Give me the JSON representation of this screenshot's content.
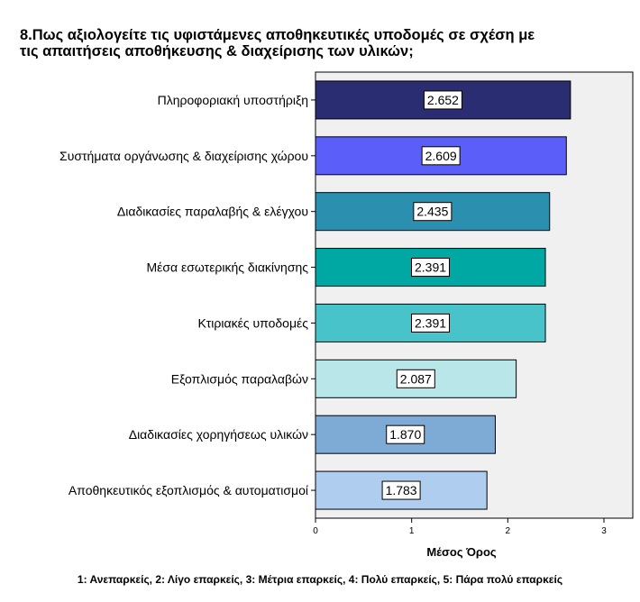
{
  "chart_data": {
    "type": "bar",
    "orientation": "horizontal",
    "title_lines": [
      "8.Πως αξιολογείτε τις υφιστάμενες αποθηκευτικές υποδομές σε σχέση με",
      "τις απαιτήσεις αποθήκευσης & διαχείρισης των υλικών;"
    ],
    "categories": [
      "Πληροφοριακή υποστήριξη",
      "Συστήματα οργάνωσης & διαχείρισης χώρου",
      "Διαδικασίες παραλαβής & ελέγχου",
      "Μέσα εσωτερικής διακίνησης",
      "Κτιριακές υποδομές",
      "Εξοπλισμός παραλαβών",
      "Διαδικασίες χορηγήσεως υλικών",
      "Αποθηκευτικός εξοπλισμός & αυτοματισμοί"
    ],
    "values": [
      2.652,
      2.609,
      2.435,
      2.391,
      2.391,
      2.087,
      1.87,
      1.783
    ],
    "data_labels": [
      "2.652",
      "2.609",
      "2.435",
      "2.391",
      "2.391",
      "2.087",
      "1.870",
      "1.783"
    ],
    "bar_colors": [
      "#2b2d73",
      "#5b5ef8",
      "#2b8fb0",
      "#00a8a3",
      "#48c3c9",
      "#b8e6e9",
      "#7eaad6",
      "#aecdef"
    ],
    "xlabel": "Μέσος Όρος",
    "xlim": [
      0,
      3.3
    ],
    "xticks": [
      0,
      1,
      2,
      3
    ],
    "xtick_labels": [
      "0",
      "1",
      "2",
      "3"
    ],
    "grid": false,
    "plot_background": "#f0f0f0"
  },
  "footnote": "1: Ανεπαρκείς, 2: Λίγο επαρκείς, 3: Μέτρια επαρκείς, 4: Πολύ επαρκείς, 5: Πάρα πολύ επαρκείς"
}
